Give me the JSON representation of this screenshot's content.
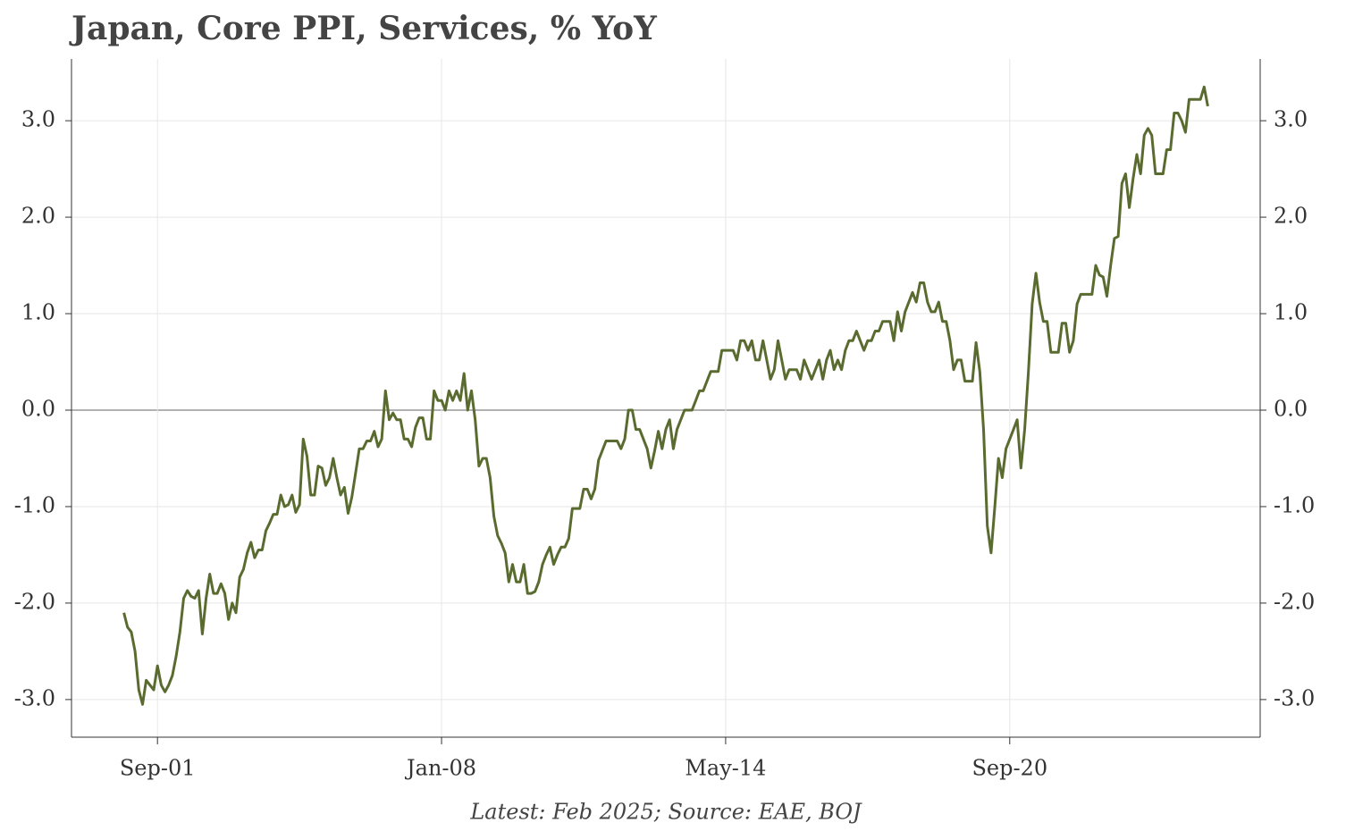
{
  "chart_data": {
    "type": "line",
    "title": "Japan, Core PPI, Services, % YoY",
    "note": "Latest: Feb 2025; Source: EAE, BOJ",
    "x": [
      "2000-12",
      "2001-01",
      "2001-02",
      "2001-03",
      "2001-04",
      "2001-05",
      "2001-06",
      "2001-07",
      "2001-08",
      "2001-09",
      "2001-10",
      "2001-11",
      "2001-12",
      "2002-01",
      "2002-02",
      "2002-03",
      "2002-04",
      "2002-05",
      "2002-06",
      "2002-07",
      "2002-08",
      "2002-09",
      "2002-10",
      "2002-11",
      "2002-12",
      "2003-01",
      "2003-02",
      "2003-03",
      "2003-04",
      "2003-05",
      "2003-06",
      "2003-07",
      "2003-08",
      "2003-09",
      "2003-10",
      "2003-11",
      "2003-12",
      "2004-01",
      "2004-02",
      "2004-03",
      "2004-04",
      "2004-05",
      "2004-06",
      "2004-07",
      "2004-08",
      "2004-09",
      "2004-10",
      "2004-11",
      "2004-12",
      "2005-01",
      "2005-02",
      "2005-03",
      "2005-04",
      "2005-05",
      "2005-06",
      "2005-07",
      "2005-08",
      "2005-09",
      "2005-10",
      "2005-11",
      "2005-12",
      "2006-01",
      "2006-02",
      "2006-03",
      "2006-04",
      "2006-05",
      "2006-06",
      "2006-07",
      "2006-08",
      "2006-09",
      "2006-10",
      "2006-11",
      "2006-12",
      "2007-01",
      "2007-02",
      "2007-03",
      "2007-04",
      "2007-05",
      "2007-06",
      "2007-07",
      "2007-08",
      "2007-09",
      "2007-10",
      "2007-11",
      "2007-12",
      "2008-01",
      "2008-02",
      "2008-03",
      "2008-04",
      "2008-05",
      "2008-06",
      "2008-07",
      "2008-08",
      "2008-09",
      "2008-10",
      "2008-11",
      "2008-12",
      "2009-01",
      "2009-02",
      "2009-03",
      "2009-04",
      "2009-05",
      "2009-06",
      "2009-07",
      "2009-08",
      "2009-09",
      "2009-10",
      "2009-11",
      "2009-12",
      "2010-01",
      "2010-02",
      "2010-03",
      "2010-04",
      "2010-05",
      "2010-06",
      "2010-07",
      "2010-08",
      "2010-09",
      "2010-10",
      "2010-11",
      "2010-12",
      "2011-01",
      "2011-02",
      "2011-03",
      "2011-04",
      "2011-05",
      "2011-06",
      "2011-07",
      "2011-08",
      "2011-09",
      "2011-10",
      "2011-11",
      "2011-12",
      "2012-01",
      "2012-02",
      "2012-03",
      "2012-04",
      "2012-05",
      "2012-06",
      "2012-07",
      "2012-08",
      "2012-09",
      "2012-10",
      "2012-11",
      "2012-12",
      "2013-01",
      "2013-02",
      "2013-03",
      "2013-04",
      "2013-05",
      "2013-06",
      "2013-07",
      "2013-08",
      "2013-09",
      "2013-10",
      "2013-11",
      "2013-12",
      "2014-01",
      "2014-02",
      "2014-03",
      "2014-04",
      "2014-05",
      "2014-06",
      "2014-07",
      "2014-08",
      "2014-09",
      "2014-10",
      "2014-11",
      "2014-12",
      "2015-01",
      "2015-02",
      "2015-03",
      "2015-04",
      "2015-05",
      "2015-06",
      "2015-07",
      "2015-08",
      "2015-09",
      "2015-10",
      "2015-11",
      "2015-12",
      "2016-01",
      "2016-02",
      "2016-03",
      "2016-04",
      "2016-05",
      "2016-06",
      "2016-07",
      "2016-08",
      "2016-09",
      "2016-10",
      "2016-11",
      "2016-12",
      "2017-01",
      "2017-02",
      "2017-03",
      "2017-04",
      "2017-05",
      "2017-06",
      "2017-07",
      "2017-08",
      "2017-09",
      "2017-10",
      "2017-11",
      "2017-12",
      "2018-01",
      "2018-02",
      "2018-03",
      "2018-04",
      "2018-05",
      "2018-06",
      "2018-07",
      "2018-08",
      "2018-09",
      "2018-10",
      "2018-11",
      "2018-12",
      "2019-01",
      "2019-02",
      "2019-03",
      "2019-04",
      "2019-05",
      "2019-06",
      "2019-07",
      "2019-08",
      "2019-09",
      "2019-10",
      "2019-11",
      "2019-12",
      "2020-01",
      "2020-02",
      "2020-03",
      "2020-04",
      "2020-05",
      "2020-06",
      "2020-07",
      "2020-08",
      "2020-09",
      "2020-10",
      "2020-11",
      "2020-12",
      "2021-01",
      "2021-02",
      "2021-03",
      "2021-04",
      "2021-05",
      "2021-06",
      "2021-07",
      "2021-08",
      "2021-09",
      "2021-10",
      "2021-11",
      "2021-12",
      "2022-01",
      "2022-02",
      "2022-03",
      "2022-04",
      "2022-05",
      "2022-06",
      "2022-07",
      "2022-08",
      "2022-09",
      "2022-10",
      "2022-11",
      "2022-12",
      "2023-01",
      "2023-02",
      "2023-03",
      "2023-04",
      "2023-05",
      "2023-06",
      "2023-07",
      "2023-08",
      "2023-09",
      "2023-10",
      "2023-11",
      "2023-12",
      "2024-01",
      "2024-02",
      "2024-03",
      "2024-04",
      "2024-05",
      "2024-06",
      "2024-07",
      "2024-08",
      "2024-09",
      "2024-10",
      "2024-11",
      "2024-12",
      "2025-01",
      "2025-02"
    ],
    "series": [
      {
        "color": "#5a6b30",
        "values": [
          -2.1,
          -2.25,
          -2.3,
          -2.5,
          -2.9,
          -3.05,
          -2.8,
          -2.85,
          -2.9,
          -2.65,
          -2.85,
          -2.92,
          -2.85,
          -2.75,
          -2.55,
          -2.3,
          -1.95,
          -1.87,
          -1.93,
          -1.95,
          -1.87,
          -2.32,
          -1.95,
          -1.7,
          -1.9,
          -1.9,
          -1.8,
          -1.9,
          -2.17,
          -2.0,
          -2.1,
          -1.73,
          -1.65,
          -1.48,
          -1.37,
          -1.53,
          -1.45,
          -1.45,
          -1.25,
          -1.17,
          -1.08,
          -1.08,
          -0.88,
          -1.0,
          -0.98,
          -0.88,
          -1.06,
          -0.98,
          -0.3,
          -0.48,
          -0.88,
          -0.88,
          -0.58,
          -0.6,
          -0.78,
          -0.7,
          -0.5,
          -0.7,
          -0.88,
          -0.8,
          -1.07,
          -0.9,
          -0.65,
          -0.4,
          -0.4,
          -0.32,
          -0.32,
          -0.22,
          -0.38,
          -0.3,
          0.2,
          -0.1,
          -0.03,
          -0.1,
          -0.1,
          -0.3,
          -0.3,
          -0.38,
          -0.18,
          -0.08,
          -0.08,
          -0.3,
          -0.3,
          0.2,
          0.1,
          0.1,
          0.0,
          0.2,
          0.1,
          0.2,
          0.1,
          0.38,
          0.0,
          0.2,
          -0.1,
          -0.58,
          -0.5,
          -0.5,
          -0.7,
          -1.1,
          -1.3,
          -1.38,
          -1.48,
          -1.78,
          -1.6,
          -1.78,
          -1.78,
          -1.6,
          -1.9,
          -1.9,
          -1.88,
          -1.78,
          -1.6,
          -1.5,
          -1.42,
          -1.6,
          -1.5,
          -1.42,
          -1.42,
          -1.33,
          -1.02,
          -1.02,
          -1.02,
          -0.82,
          -0.82,
          -0.92,
          -0.82,
          -0.52,
          -0.42,
          -0.32,
          -0.32,
          -0.32,
          -0.32,
          -0.4,
          -0.3,
          0.0,
          0.0,
          -0.2,
          -0.2,
          -0.3,
          -0.4,
          -0.6,
          -0.42,
          -0.22,
          -0.4,
          -0.2,
          -0.1,
          -0.4,
          -0.2,
          -0.1,
          0.0,
          0.0,
          0.0,
          0.1,
          0.2,
          0.2,
          0.3,
          0.4,
          0.4,
          0.4,
          0.62,
          0.62,
          0.62,
          0.62,
          0.52,
          0.72,
          0.72,
          0.62,
          0.72,
          0.52,
          0.52,
          0.72,
          0.52,
          0.32,
          0.42,
          0.72,
          0.52,
          0.32,
          0.42,
          0.42,
          0.42,
          0.32,
          0.52,
          0.42,
          0.32,
          0.42,
          0.52,
          0.32,
          0.52,
          0.62,
          0.42,
          0.52,
          0.42,
          0.62,
          0.72,
          0.72,
          0.82,
          0.72,
          0.62,
          0.72,
          0.72,
          0.82,
          0.82,
          0.92,
          0.92,
          0.92,
          0.72,
          1.02,
          0.82,
          1.02,
          1.12,
          1.22,
          1.12,
          1.32,
          1.32,
          1.12,
          1.02,
          1.02,
          1.12,
          0.92,
          0.92,
          0.72,
          0.42,
          0.52,
          0.52,
          0.3,
          0.3,
          0.3,
          0.7,
          0.4,
          -0.2,
          -1.2,
          -1.48,
          -1.0,
          -0.5,
          -0.7,
          -0.4,
          -0.3,
          -0.2,
          -0.1,
          -0.6,
          -0.2,
          0.4,
          1.1,
          1.42,
          1.12,
          0.92,
          0.92,
          0.6,
          0.6,
          0.6,
          0.9,
          0.9,
          0.6,
          0.72,
          1.1,
          1.2,
          1.2,
          1.2,
          1.2,
          1.5,
          1.4,
          1.38,
          1.18,
          1.5,
          1.78,
          1.8,
          2.35,
          2.45,
          2.1,
          2.4,
          2.65,
          2.45,
          2.85,
          2.92,
          2.85,
          2.45,
          2.45,
          2.45,
          2.7,
          2.7,
          3.08,
          3.08,
          3.0,
          2.88,
          3.22,
          3.22,
          3.22,
          3.22,
          3.35,
          3.15
        ]
      }
    ],
    "xlim": [
      "1999-10",
      "2026-04"
    ],
    "xticks": [
      {
        "value": "2001-09",
        "label": "Sep-01"
      },
      {
        "value": "2008-01",
        "label": "Jan-08"
      },
      {
        "value": "2014-05",
        "label": "May-14"
      },
      {
        "value": "2020-09",
        "label": "Sep-20"
      }
    ],
    "ylim": [
      -3.39,
      3.64
    ],
    "yticks": [
      {
        "value": -3,
        "label": "-3.0"
      },
      {
        "value": -2,
        "label": "-2.0"
      },
      {
        "value": -1,
        "label": "-1.0"
      },
      {
        "value": 0,
        "label": "0.0"
      },
      {
        "value": 1,
        "label": "1.0"
      },
      {
        "value": 2,
        "label": "2.0"
      },
      {
        "value": 3,
        "label": "3.0"
      }
    ],
    "grid": true,
    "right_axis": true
  }
}
